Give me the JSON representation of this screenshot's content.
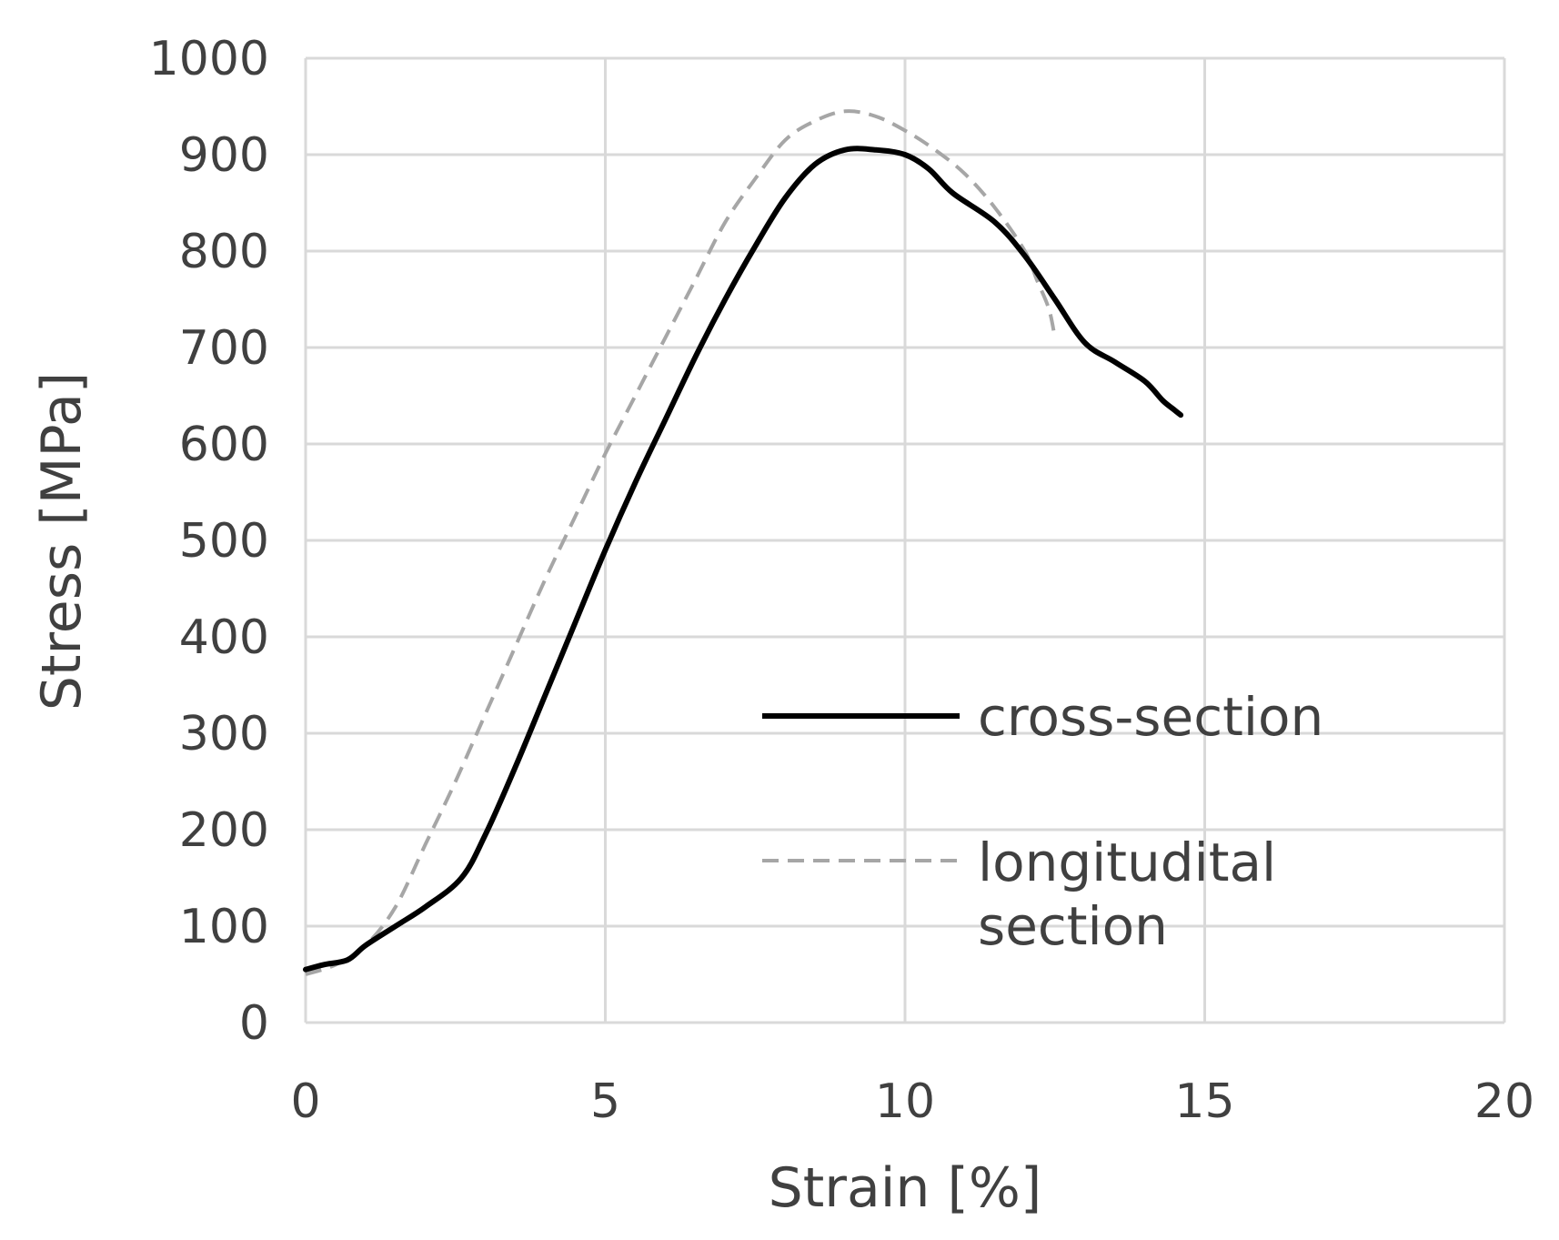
{
  "chart_data": {
    "type": "line",
    "title": "",
    "xlabel": "Strain [%]",
    "ylabel": "Stress [MPa]",
    "xlim": [
      0,
      20
    ],
    "ylim": [
      0,
      1000
    ],
    "x_ticks": [
      "0",
      "5",
      "10",
      "15",
      "20"
    ],
    "y_ticks": [
      "0",
      "100",
      "200",
      "300",
      "400",
      "500",
      "600",
      "700",
      "800",
      "900",
      "1000"
    ],
    "x_tick_values": [
      0,
      5,
      10,
      15,
      20
    ],
    "y_tick_values": [
      0,
      100,
      200,
      300,
      400,
      500,
      600,
      700,
      800,
      900,
      1000
    ],
    "grid": true,
    "legend_position": "right",
    "series": [
      {
        "name": "cross-section",
        "color": "#000000",
        "style": "solid",
        "x": [
          0,
          0.3,
          0.7,
          1.0,
          1.5,
          2.0,
          2.6,
          3.0,
          3.5,
          4.0,
          4.5,
          5.0,
          5.5,
          6.0,
          6.5,
          7.0,
          7.5,
          8.0,
          8.5,
          9.0,
          9.5,
          10.0,
          10.4,
          10.8,
          11.5,
          12.0,
          12.5,
          13.0,
          13.5,
          14.0,
          14.3,
          14.5,
          14.6
        ],
        "y": [
          55,
          60,
          65,
          80,
          100,
          120,
          150,
          195,
          265,
          340,
          415,
          490,
          560,
          625,
          690,
          750,
          805,
          855,
          890,
          905,
          905,
          900,
          885,
          860,
          830,
          795,
          750,
          705,
          685,
          665,
          645,
          635,
          630
        ]
      },
      {
        "name": "longitudital section",
        "color": "#a6a6a6",
        "style": "dashed",
        "x": [
          0,
          0.5,
          1.0,
          1.5,
          2.0,
          2.5,
          3.0,
          3.5,
          4.0,
          4.5,
          5.0,
          5.5,
          6.0,
          6.5,
          7.0,
          7.5,
          8.0,
          8.5,
          9.0,
          9.5,
          10.0,
          10.5,
          11.0,
          11.5,
          12.0,
          12.2,
          12.4,
          12.5
        ],
        "y": [
          50,
          60,
          80,
          120,
          185,
          250,
          320,
          390,
          460,
          525,
          590,
          650,
          710,
          770,
          830,
          875,
          915,
          935,
          945,
          940,
          925,
          905,
          880,
          845,
          800,
          770,
          740,
          710
        ]
      }
    ]
  }
}
